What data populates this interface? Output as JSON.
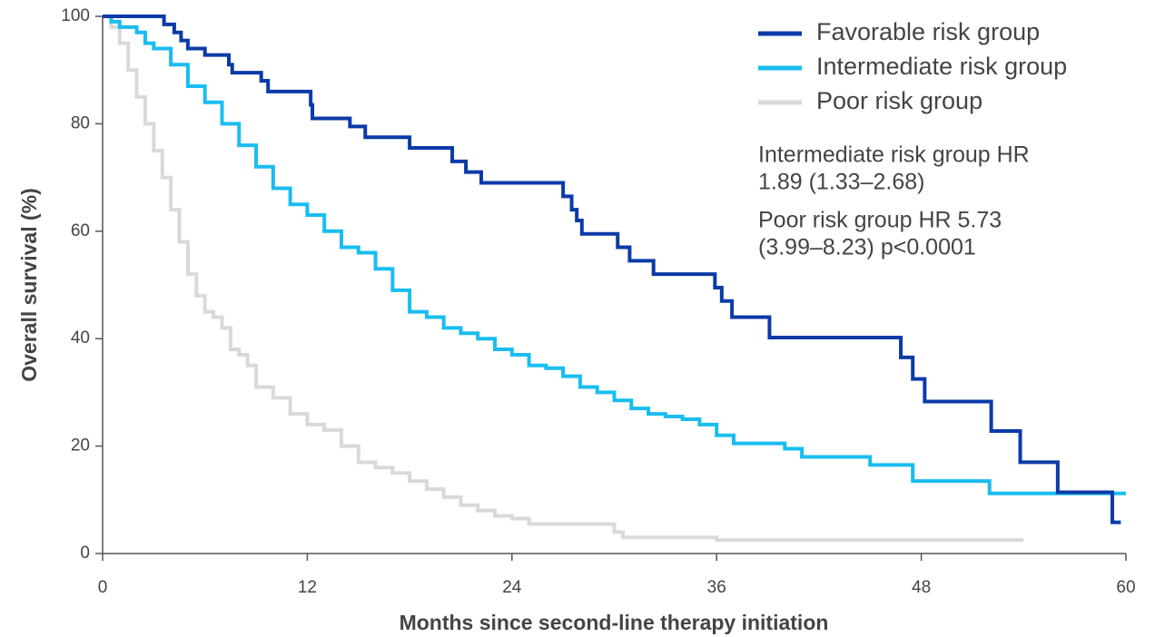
{
  "chart_data": {
    "type": "line",
    "step": true,
    "x_label": "Months since second-line therapy initiation",
    "y_label": "Overall survival (%)",
    "xlim": [
      0,
      60
    ],
    "xticks": [
      0,
      12,
      24,
      36,
      48,
      60
    ],
    "ylim": [
      0,
      100
    ],
    "yticks": [
      0,
      20,
      40,
      60,
      80,
      100
    ],
    "legend": "upper right",
    "annotations": [
      [
        "Intermediate risk group HR",
        "1.89 (1.33–2.68)"
      ],
      [
        "Poor risk group HR 5.73",
        "(3.99–8.23) p<0.0001"
      ]
    ],
    "series": [
      {
        "name": "Favorable risk group",
        "color": "#0b3aa8",
        "x": [
          0,
          3.6,
          4.2,
          4.6,
          5,
          6,
          7.4,
          7.6,
          9.3,
          9.7,
          12.2,
          12.3,
          14.5,
          15.4,
          18,
          20.5,
          21.3,
          22.2,
          27,
          27.5,
          27.8,
          28.1,
          30.2,
          30.9,
          32.3,
          35.9,
          36.3,
          36.9,
          39.1,
          46.8,
          47.5,
          48.2,
          52.1,
          53.8,
          56,
          59.2,
          59.7
        ],
        "values": [
          100,
          98.5,
          97,
          95.5,
          94,
          92.8,
          91,
          89.5,
          88,
          86,
          83.5,
          81,
          79.5,
          77.5,
          75.5,
          73,
          71,
          69,
          66.5,
          64,
          62,
          59.5,
          57,
          54.5,
          52,
          49.5,
          47,
          44,
          40.2,
          36.5,
          32.5,
          28.3,
          22.8,
          17,
          11.4,
          5.8,
          5.8
        ]
      },
      {
        "name": "Intermediate risk group",
        "color": "#19bdf0",
        "x": [
          0,
          0.5,
          1,
          2,
          2.5,
          3,
          4,
          5,
          6,
          7,
          8,
          9,
          10,
          11,
          12,
          13,
          14,
          15,
          16,
          17,
          18,
          19,
          20,
          21,
          22,
          23,
          24,
          25,
          26,
          27,
          28,
          29,
          30,
          31,
          32,
          33,
          34,
          35,
          36,
          37,
          40,
          41,
          45,
          47.5,
          52,
          60
        ],
        "values": [
          100,
          99,
          98,
          97,
          95,
          94,
          91,
          87,
          84,
          80,
          76,
          72,
          68,
          65,
          63,
          60,
          57,
          56,
          53,
          49,
          45,
          44,
          42,
          41,
          40,
          38,
          37,
          35,
          34.5,
          33,
          31,
          30,
          28.5,
          27,
          26,
          25.5,
          25,
          24,
          22,
          20.5,
          19.5,
          18,
          16.5,
          13.5,
          11.2,
          11.2
        ]
      },
      {
        "name": "Poor risk group",
        "color": "#d9d9d9",
        "x": [
          0,
          0.5,
          1,
          1.5,
          2,
          2.5,
          3,
          3.5,
          4,
          4.5,
          5,
          5.5,
          6,
          6.5,
          7,
          7.5,
          8,
          8.5,
          9,
          10,
          11,
          12,
          13,
          14,
          15,
          16,
          17,
          18,
          19,
          20,
          21,
          22,
          23,
          24,
          25,
          30,
          30.5,
          36,
          54
        ],
        "values": [
          100,
          98,
          95,
          90,
          85,
          80,
          75,
          70,
          64,
          58,
          52,
          48,
          45,
          44,
          42,
          38,
          37,
          35,
          31,
          29,
          26,
          24,
          23,
          20,
          17,
          16,
          15,
          13.5,
          12,
          10.5,
          9,
          8,
          7,
          6.5,
          5.5,
          4,
          3,
          2.5,
          2.5
        ]
      }
    ]
  }
}
